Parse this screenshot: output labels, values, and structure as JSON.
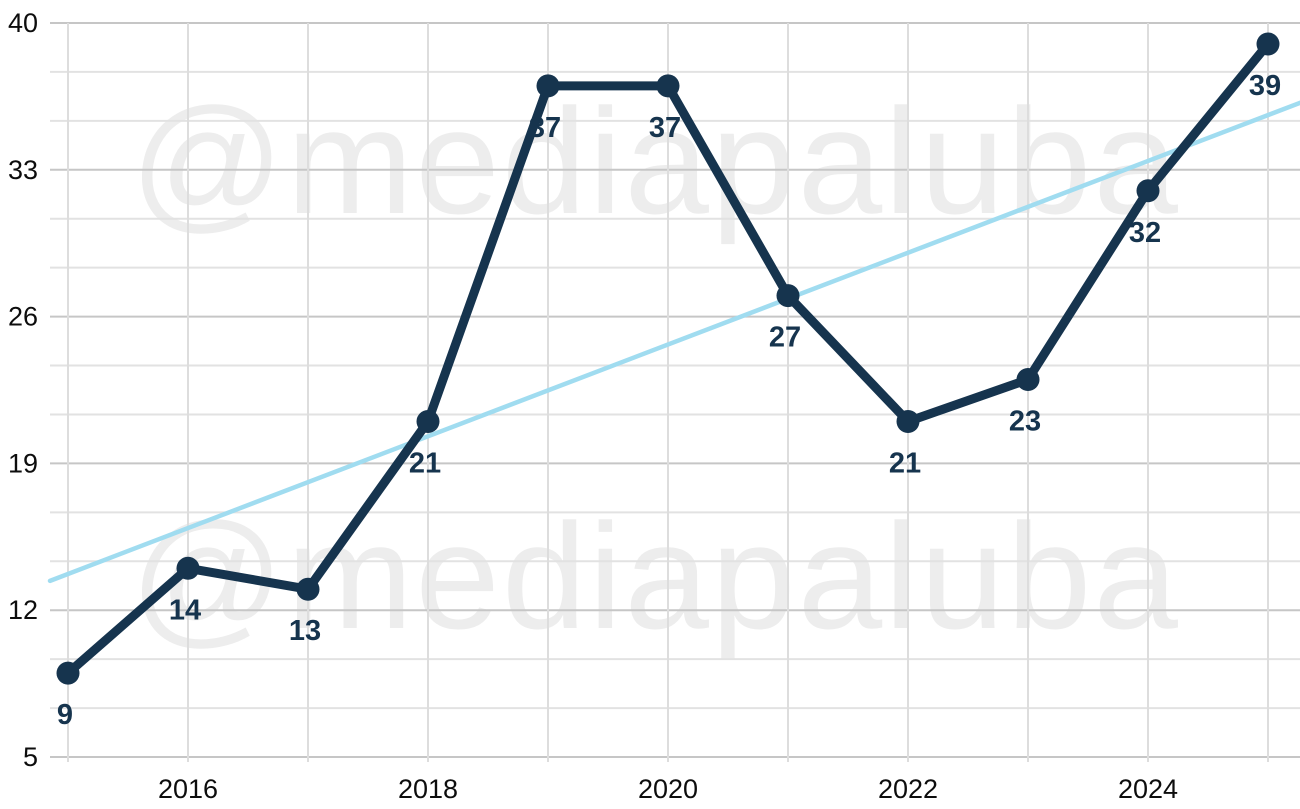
{
  "chart_data": {
    "type": "line",
    "title": "",
    "xlabel": "",
    "ylabel": "",
    "x": [
      2015,
      2016,
      2017,
      2018,
      2019,
      2020,
      2021,
      2022,
      2023,
      2024,
      2025
    ],
    "values": [
      9,
      14,
      13,
      21,
      37,
      37,
      27,
      21,
      23,
      32,
      39
    ],
    "point_labels": [
      "9",
      "14",
      "13",
      "21",
      "37",
      "37",
      "27",
      "21",
      "23",
      "32",
      "39"
    ],
    "y_ticks": [
      40,
      33,
      26,
      19,
      12,
      5
    ],
    "y_tick_labels": [
      "40",
      "33",
      "26",
      "19",
      "12",
      "5"
    ],
    "y_minor_divisions": 3,
    "ylim": [
      5,
      40
    ],
    "x_ticks": [
      2016,
      2018,
      2020,
      2022,
      2024
    ],
    "x_tick_labels": [
      "2016",
      "2018",
      "2020",
      "2022",
      "2024"
    ],
    "grid": "on",
    "legend": "none",
    "series_color": "#16344e",
    "trendline": {
      "type": "linear",
      "color": "#a0dcf0",
      "start": {
        "x": 2014.85,
        "value": 13.4
      },
      "end": {
        "x": 2025.27,
        "value": 36.2
      }
    },
    "watermark": "@mediapaluba"
  }
}
